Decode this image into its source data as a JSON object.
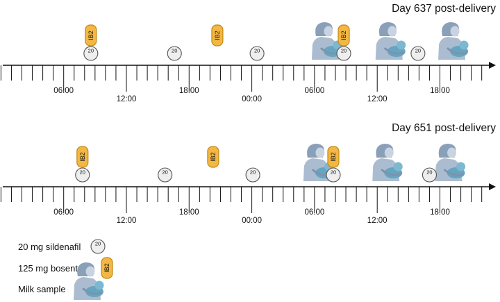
{
  "timelines": [
    {
      "title": "Day 637 post-delivery",
      "tick_labels": [
        "06:00",
        "12:00",
        "18:00",
        "00:00",
        "06:00",
        "12:00",
        "18:00"
      ],
      "events": [
        {
          "type": "sildenafil",
          "hour": 8.6,
          "label": "20"
        },
        {
          "type": "sildenafil",
          "hour": 16.6,
          "label": "20"
        },
        {
          "type": "sildenafil",
          "hour": 24.5,
          "label": "20"
        },
        {
          "type": "sildenafil",
          "hour": 32.8,
          "label": "20"
        },
        {
          "type": "sildenafil",
          "hour": 39.9,
          "label": "20"
        },
        {
          "type": "bosentan",
          "hour": 8.6,
          "label": "IB2"
        },
        {
          "type": "bosentan",
          "hour": 20.7,
          "label": "IB2"
        },
        {
          "type": "bosentan",
          "hour": 32.8,
          "label": "IB2"
        },
        {
          "type": "milk",
          "hour": 31.2
        },
        {
          "type": "milk",
          "hour": 37.3
        },
        {
          "type": "milk",
          "hour": 43.3
        }
      ]
    },
    {
      "title": "Day 651 post-delivery",
      "tick_labels": [
        "06:00",
        "12:00",
        "18:00",
        "00:00",
        "06:00",
        "12:00",
        "18:00"
      ],
      "events": [
        {
          "type": "sildenafil",
          "hour": 7.8,
          "label": "20"
        },
        {
          "type": "sildenafil",
          "hour": 15.7,
          "label": "20"
        },
        {
          "type": "sildenafil",
          "hour": 24.1,
          "label": "20"
        },
        {
          "type": "sildenafil",
          "hour": 31.8,
          "label": "20"
        },
        {
          "type": "sildenafil",
          "hour": 41.0,
          "label": "20"
        },
        {
          "type": "bosentan",
          "hour": 7.8,
          "label": "IB2"
        },
        {
          "type": "bosentan",
          "hour": 20.3,
          "label": "IB2"
        },
        {
          "type": "bosentan",
          "hour": 31.8,
          "label": "IB2"
        },
        {
          "type": "milk",
          "hour": 30.4
        },
        {
          "type": "milk",
          "hour": 37.0
        },
        {
          "type": "milk",
          "hour": 43.0
        }
      ]
    }
  ],
  "legend": [
    {
      "type": "sildenafil",
      "text": "20 mg sildenafil",
      "icon_label": "20"
    },
    {
      "type": "bosentan",
      "text": "125 mg bosentan",
      "icon_label": "IB2"
    },
    {
      "type": "milk",
      "text": "Milk sample"
    }
  ],
  "colors": {
    "pill_fill": "#f2b744",
    "pill_stroke": "#c48a12",
    "tablet_fill": "#eeeeee",
    "tablet_stroke": "#555555",
    "mother": "#9db0c8",
    "baby": "#64a6c0",
    "axis": "#111111"
  }
}
